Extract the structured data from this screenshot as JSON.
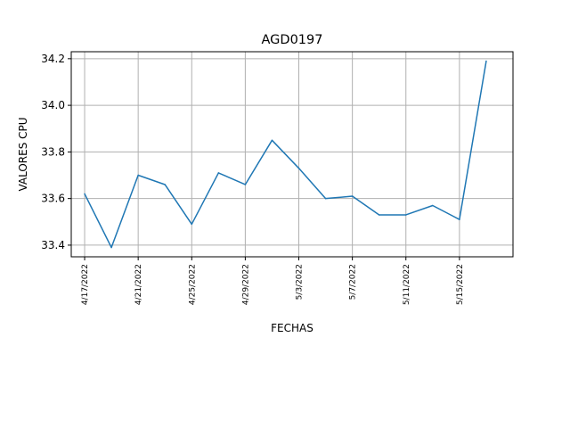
{
  "chart_data": {
    "type": "line",
    "title": "AGD0197",
    "xlabel": "FECHAS",
    "ylabel": "VALORES CPU",
    "x_tick_labels": [
      "4/17/2022",
      "4/21/2022",
      "4/25/2022",
      "4/29/2022",
      "5/3/2022",
      "5/7/2022",
      "5/11/2022",
      "5/15/2022"
    ],
    "y_tick_labels": [
      "33.4",
      "33.6",
      "33.8",
      "34.0",
      "34.2"
    ],
    "y_ticks": [
      33.4,
      33.6,
      33.8,
      34.0,
      34.2
    ],
    "ylim": [
      33.35,
      34.23
    ],
    "xlim": [
      "2022-04-16",
      "2022-05-19"
    ],
    "grid": true,
    "line_color": "#1f77b4",
    "series": [
      {
        "x": [
          "2022-04-17",
          "2022-04-19",
          "2022-04-21",
          "2022-04-23",
          "2022-04-25",
          "2022-04-27",
          "2022-04-29",
          "2022-05-01",
          "2022-05-03",
          "2022-05-05",
          "2022-05-07",
          "2022-05-09",
          "2022-05-11",
          "2022-05-13",
          "2022-05-15",
          "2022-05-17"
        ],
        "values": [
          33.62,
          33.39,
          33.7,
          33.66,
          33.49,
          33.71,
          33.66,
          33.85,
          33.73,
          33.6,
          33.61,
          33.53,
          33.53,
          33.57,
          33.51,
          34.19
        ]
      }
    ]
  }
}
